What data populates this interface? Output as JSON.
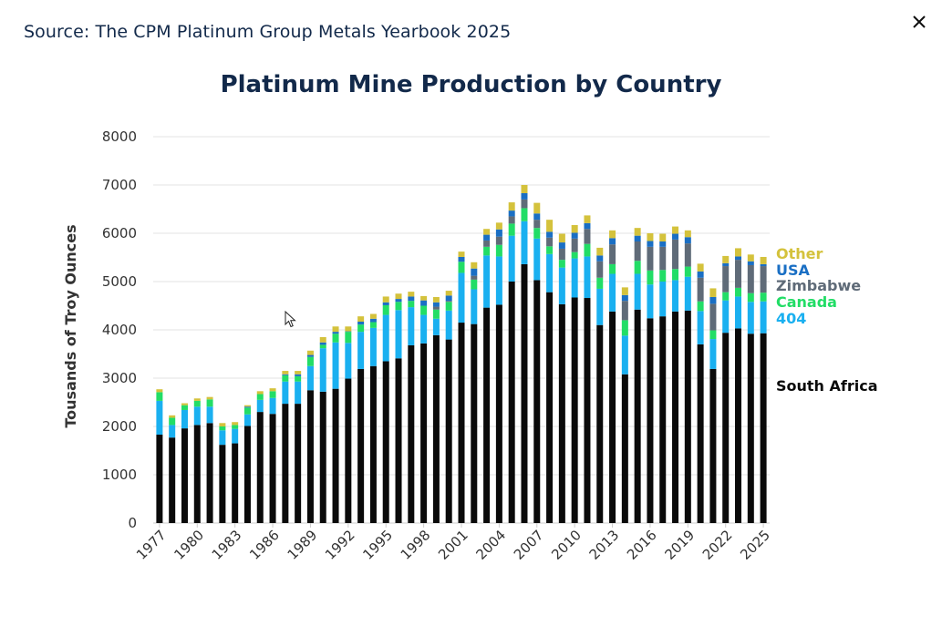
{
  "header": {
    "source": "Source: The CPM Platinum Group Metals Yearbook 2025",
    "close_icon": "close-icon"
  },
  "chart_data": {
    "type": "bar",
    "stacked": true,
    "title": "Platinum Mine Production by Country",
    "xlabel": "",
    "ylabel": "Tousands of Troy Ounces",
    "ylim": [
      0,
      8000
    ],
    "yticks": [
      0,
      1000,
      2000,
      3000,
      4000,
      5000,
      6000,
      7000,
      8000
    ],
    "grid": true,
    "legend_placement": "right",
    "x": [
      1977,
      1978,
      1979,
      1980,
      1981,
      1982,
      1983,
      1984,
      1985,
      1986,
      1987,
      1988,
      1989,
      1990,
      1991,
      1992,
      1993,
      1994,
      1995,
      1996,
      1997,
      1998,
      1999,
      2000,
      2001,
      2002,
      2003,
      2004,
      2005,
      2006,
      2007,
      2008,
      2009,
      2010,
      2011,
      2012,
      2013,
      2014,
      2015,
      2016,
      2017,
      2018,
      2019,
      2020,
      2021,
      2022,
      2023,
      2024,
      2025
    ],
    "xtick_labels": [
      "1977",
      "1980",
      "1983",
      "1986",
      "1989",
      "1992",
      "1995",
      "1998",
      "2001",
      "2004",
      "2007",
      "2010",
      "2013",
      "2016",
      "2019",
      "2022",
      "2025"
    ],
    "series": [
      {
        "name": "South Africa",
        "color": "#0a0a0a",
        "values": [
          1830,
          1770,
          1960,
          2030,
          2070,
          1620,
          1650,
          2010,
          2300,
          2260,
          2470,
          2470,
          2750,
          2720,
          2780,
          2990,
          3190,
          3250,
          3350,
          3410,
          3680,
          3720,
          3890,
          3800,
          4150,
          4120,
          4460,
          4520,
          5000,
          5360,
          5030,
          4780,
          4530,
          4670,
          4660,
          4100,
          4380,
          3080,
          4420,
          4240,
          4280,
          4380,
          4400,
          3700,
          3190,
          3940,
          4030,
          3920,
          3930
        ]
      },
      {
        "name": "404",
        "color": "#1ab0f0",
        "values": [
          700,
          260,
          380,
          380,
          340,
          300,
          300,
          240,
          250,
          330,
          460,
          460,
          500,
          900,
          960,
          740,
          770,
          790,
          960,
          1000,
          790,
          590,
          340,
          600,
          1030,
          720,
          1080,
          1000,
          950,
          890,
          860,
          790,
          760,
          810,
          860,
          750,
          780,
          800,
          740,
          700,
          720,
          650,
          700,
          690,
          620,
          670,
          660,
          660,
          660
        ]
      },
      {
        "name": "Canada",
        "color": "#22dd66",
        "values": [
          180,
          150,
          100,
          120,
          150,
          80,
          80,
          140,
          120,
          140,
          130,
          110,
          190,
          70,
          180,
          230,
          150,
          120,
          200,
          170,
          130,
          190,
          190,
          180,
          230,
          200,
          180,
          240,
          250,
          270,
          220,
          160,
          160,
          130,
          260,
          230,
          200,
          320,
          270,
          290,
          240,
          230,
          210,
          200,
          180,
          170,
          180,
          180,
          180
        ]
      },
      {
        "name": "Zimbabwe",
        "color": "#5f6b78",
        "values": [
          0,
          0,
          0,
          0,
          0,
          0,
          0,
          0,
          0,
          0,
          0,
          0,
          0,
          0,
          0,
          0,
          0,
          0,
          0,
          0,
          0,
          0,
          60,
          20,
          0,
          80,
          130,
          170,
          150,
          180,
          170,
          180,
          230,
          280,
          310,
          340,
          410,
          400,
          400,
          490,
          480,
          610,
          480,
          490,
          550,
          540,
          580,
          580,
          550
        ]
      },
      {
        "name": "USA",
        "color": "#1a6fc4",
        "values": [
          0,
          0,
          0,
          0,
          0,
          0,
          0,
          20,
          0,
          0,
          20,
          40,
          40,
          50,
          40,
          10,
          60,
          70,
          60,
          60,
          90,
          110,
          90,
          110,
          100,
          150,
          120,
          150,
          120,
          130,
          130,
          120,
          130,
          120,
          120,
          120,
          130,
          120,
          120,
          120,
          110,
          120,
          130,
          130,
          140,
          60,
          70,
          80,
          40
        ]
      },
      {
        "name": "Other",
        "color": "#d4c23c",
        "values": [
          60,
          50,
          40,
          50,
          50,
          70,
          60,
          30,
          60,
          60,
          70,
          70,
          90,
          110,
          110,
          100,
          110,
          100,
          120,
          110,
          100,
          90,
          110,
          100,
          110,
          130,
          120,
          140,
          170,
          170,
          220,
          250,
          180,
          160,
          160,
          160,
          160,
          160,
          160,
          160,
          160,
          150,
          140,
          160,
          180,
          150,
          170,
          140,
          150
        ]
      }
    ],
    "legend": [
      {
        "label": "Other",
        "color": "#d4c23c"
      },
      {
        "label": "USA",
        "color": "#1a6fc4"
      },
      {
        "label": "Zimbabwe",
        "color": "#5f6b78"
      },
      {
        "label": "Canada",
        "color": "#22dd66"
      },
      {
        "label": "404",
        "color": "#1ab0f0"
      },
      {
        "label": "South Africa",
        "color": "#0a0a0a"
      }
    ]
  }
}
